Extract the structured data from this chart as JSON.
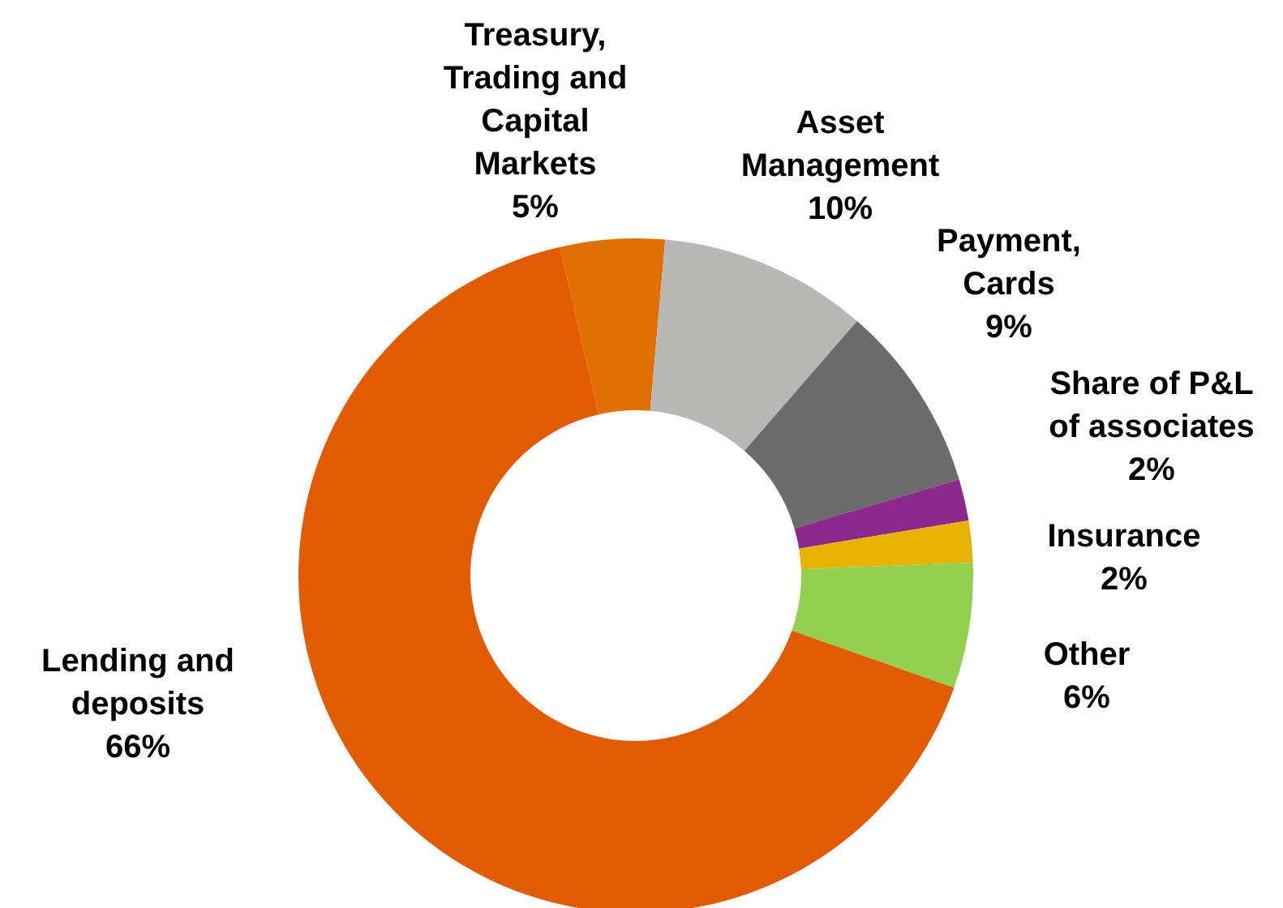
{
  "chart_data": {
    "type": "donut",
    "categories": [
      "Treasury, Trading and Capital Markets",
      "Asset Management",
      "Payment, Cards",
      "Share of P&L of associates",
      "Insurance",
      "Other",
      "Lending and deposits"
    ],
    "values": [
      5,
      10,
      9,
      2,
      2,
      6,
      66
    ],
    "value_labels": [
      "5%",
      "10%",
      "9%",
      "2%",
      "2%",
      "6%",
      "66%"
    ],
    "colors": [
      "#e07000",
      "#b8b8b6",
      "#6b6b6b",
      "#8b2a8b",
      "#e6b400",
      "#92d050",
      "#e35b00"
    ],
    "legend": false
  }
}
